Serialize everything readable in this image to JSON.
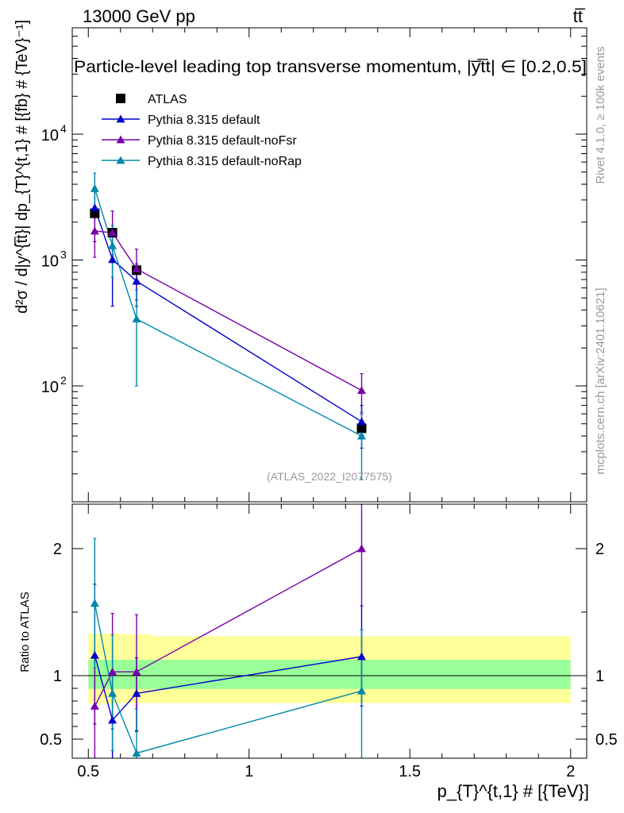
{
  "header": {
    "energy_label": "13000 GeV pp",
    "process_label": "tt̅"
  },
  "side_text": {
    "rivet": "Rivet 4.1.0, ≥ 100k events",
    "mcplots": "mcplots.cern.ch [arXiv:2401.10621]"
  },
  "chart_data": {
    "type": "line",
    "title": "Particle-level leading top transverse momentum, |y̅t̅t| ∈ [0.2,0.5]",
    "analysis_label": "(ATLAS_2022_I2077575)",
    "xlabel": "p_{T}^{t,1} # [{TeV}]",
    "ylabel": "d²σ / d|y^{t̅t}| dp_{T}^{t,1} # [{fb} # {TeV}⁻¹]",
    "ratio_ylabel": "Ratio to ATLAS",
    "xlim": [
      0.45,
      2.05
    ],
    "ylim": [
      12,
      70000
    ],
    "ratio_ylim": [
      0.35,
      2.35
    ],
    "y_scale": "log",
    "x_ticks": [
      {
        "value": 0.5,
        "label": "0.5"
      },
      {
        "value": 1,
        "label": "1"
      },
      {
        "value": 1.5,
        "label": "1.5"
      },
      {
        "value": 2,
        "label": "2"
      }
    ],
    "y_ticks": [
      {
        "value": 100,
        "base": "10",
        "exp": "2"
      },
      {
        "value": 1000,
        "base": "10",
        "exp": "3"
      },
      {
        "value": 10000,
        "base": "10",
        "exp": "4"
      }
    ],
    "ratio_ticks": [
      {
        "value": 0.5,
        "label": "0.5"
      },
      {
        "value": 1,
        "label": "1"
      },
      {
        "value": 2,
        "label": "2"
      }
    ],
    "data": {
      "name": "ATLAS",
      "color": "#000000",
      "x": [
        0.52,
        0.575,
        0.65,
        1.35
      ],
      "y": [
        2350,
        1650,
        830,
        46
      ],
      "band_bins": [
        {
          "xlo": 0.5,
          "xhi": 0.55,
          "inner": [
            0.895,
            1.125
          ],
          "outer": [
            0.78,
            1.33
          ]
        },
        {
          "xlo": 0.55,
          "xhi": 0.6,
          "inner": [
            0.895,
            1.125
          ],
          "outer": [
            0.78,
            1.33
          ]
        },
        {
          "xlo": 0.6,
          "xhi": 0.7,
          "inner": [
            0.895,
            1.125
          ],
          "outer": [
            0.785,
            1.325
          ]
        },
        {
          "xlo": 0.7,
          "xhi": 2.0,
          "inner": [
            0.895,
            1.125
          ],
          "outer": [
            0.785,
            1.31
          ]
        }
      ]
    },
    "series": [
      {
        "name": "Pythia 8.315 default",
        "color": "#0000cc",
        "x": [
          0.52,
          0.575,
          0.65,
          1.35
        ],
        "y": [
          2600,
          1010,
          680,
          52
        ],
        "err": [
          [
            1400,
            3800
          ],
          [
            430,
            1600
          ],
          [
            430,
            930
          ],
          [
            32,
            70
          ]
        ],
        "ratio": [
          1.16,
          0.65,
          0.86,
          1.15
        ],
        "ratio_err": [
          [
            0.62,
            1.72
          ],
          [
            0.3,
            1.01
          ],
          [
            0.56,
            1.14
          ],
          [
            0.76,
            1.55
          ]
        ]
      },
      {
        "name": "Pythia 8.315 default-noFsr",
        "color": "#7700aa",
        "x": [
          0.52,
          0.575,
          0.65,
          1.35
        ],
        "y": [
          1700,
          1650,
          850,
          92
        ],
        "err": [
          [
            1050,
            2350
          ],
          [
            1100,
            2450
          ],
          [
            480,
            1220
          ],
          [
            60,
            125
          ]
        ],
        "ratio": [
          0.76,
          1.03,
          1.03,
          2.0
        ],
        "ratio_err": [
          [
            0.35,
            1.17
          ],
          [
            0.58,
            1.49
          ],
          [
            0.57,
            1.48
          ],
          [
            1.55,
            2.35
          ]
        ]
      },
      {
        "name": "Pythia 8.315 default-noRap",
        "color": "#0088aa",
        "x": [
          0.52,
          0.575,
          0.65,
          1.35
        ],
        "y": [
          3700,
          1300,
          340,
          40
        ],
        "err": [
          [
            2500,
            4900
          ],
          [
            730,
            1880
          ],
          [
            100,
            580
          ],
          [
            18,
            62
          ]
        ],
        "ratio": [
          1.57,
          0.86,
          0.39,
          0.88
        ],
        "ratio_err": [
          [
            1.06,
            2.08
          ],
          [
            0.41,
            1.32
          ],
          [
            0.35,
            0.74
          ],
          [
            0.35,
            1.36
          ]
        ]
      }
    ]
  }
}
